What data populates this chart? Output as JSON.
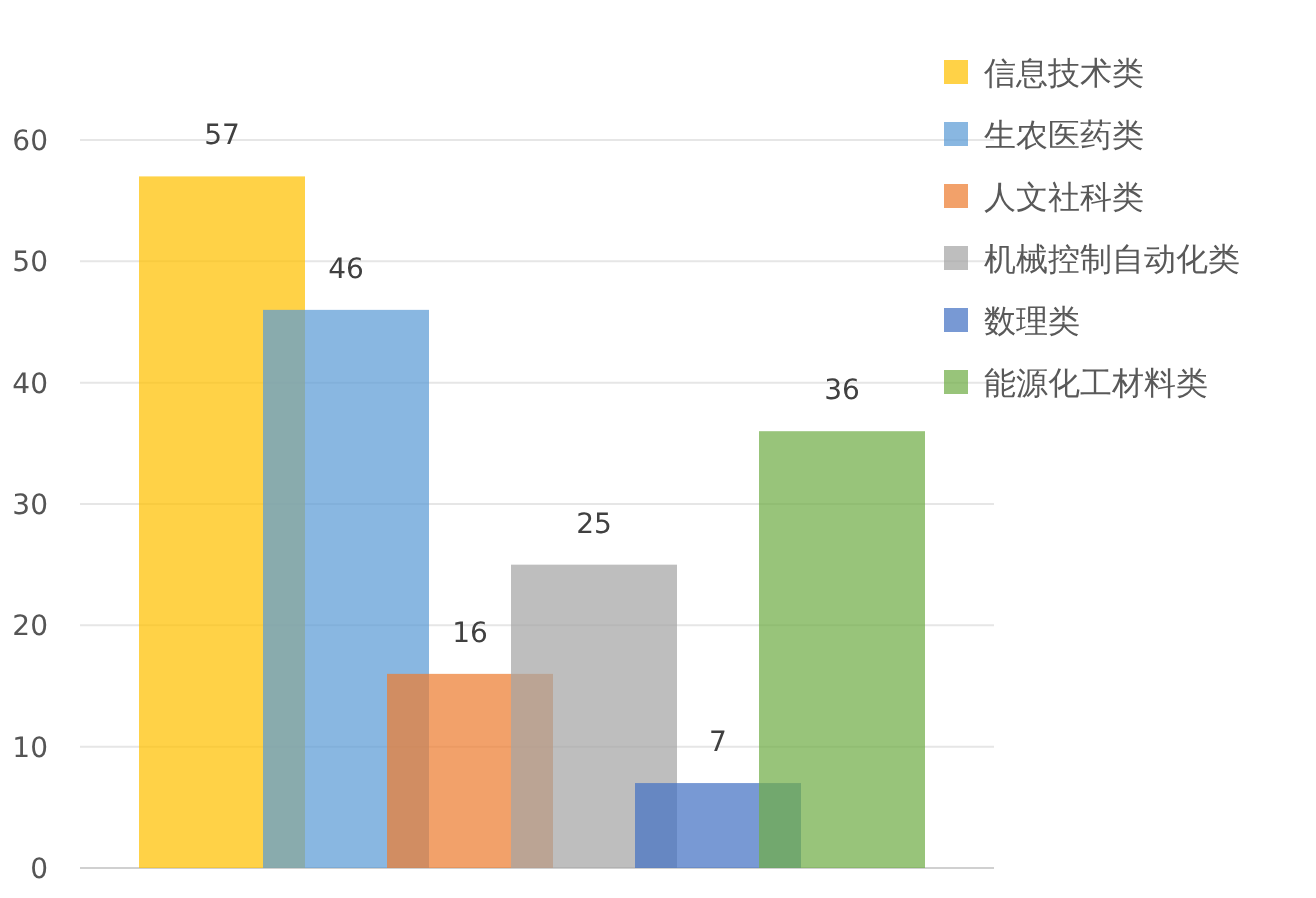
{
  "chart_data": {
    "type": "bar",
    "categories": [
      null,
      null,
      null,
      null,
      null,
      null
    ],
    "series": [
      {
        "name": "信息技术类",
        "color": "#ffc000",
        "values": [
          57,
          null,
          null,
          null,
          null,
          null
        ]
      },
      {
        "name": "生农医药类",
        "color": "#5b9bd5",
        "values": [
          null,
          46,
          null,
          null,
          null,
          null
        ]
      },
      {
        "name": "人文社科类",
        "color": "#ed7d31",
        "values": [
          null,
          null,
          16,
          null,
          null,
          null
        ]
      },
      {
        "name": "机械控制自动化类",
        "color": "#a5a5a5",
        "values": [
          null,
          null,
          null,
          25,
          null,
          null
        ]
      },
      {
        "name": "数理类",
        "color": "#4472c4",
        "values": [
          null,
          null,
          null,
          null,
          7,
          null
        ]
      },
      {
        "name": "能源化工材料类",
        "color": "#70ad47",
        "values": [
          null,
          null,
          null,
          null,
          null,
          36
        ]
      }
    ],
    "ylim": [
      0,
      60
    ],
    "yticks": [
      0,
      10,
      20,
      30,
      40,
      50,
      60
    ],
    "grid": "y",
    "legend": "top right",
    "data_labels": true
  }
}
